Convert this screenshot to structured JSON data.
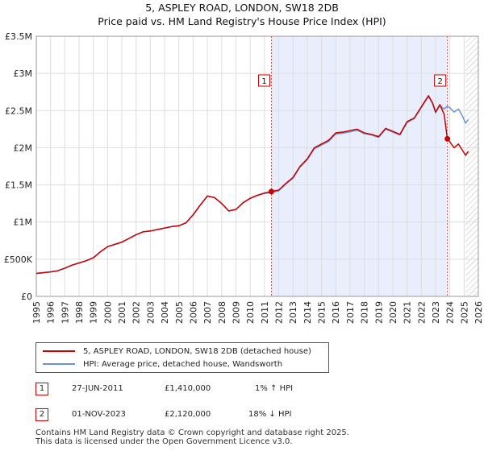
{
  "header": {
    "title": "5, ASPLEY ROAD, LONDON, SW18 2DB",
    "subtitle": "Price paid vs. HM Land Registry's House Price Index (HPI)"
  },
  "colors": {
    "price_line": "#cc0000",
    "hpi_line": "#6a94d4",
    "shade": "#e8eefb",
    "marker_line": "#e05050",
    "hatch": "#bbbbbb"
  },
  "chart_data": {
    "type": "line",
    "title": "5, ASPLEY ROAD, LONDON, SW18 2DB",
    "xlabel": "",
    "ylabel": "",
    "xlim": [
      1995,
      2026
    ],
    "ylim": [
      0,
      3500000
    ],
    "grid": true,
    "x_ticks": [
      1995,
      1996,
      1997,
      1998,
      1999,
      2000,
      2001,
      2002,
      2003,
      2004,
      2005,
      2006,
      2007,
      2008,
      2009,
      2010,
      2011,
      2012,
      2013,
      2014,
      2015,
      2016,
      2017,
      2018,
      2019,
      2020,
      2021,
      2022,
      2023,
      2024,
      2025,
      2026
    ],
    "y_ticks": [
      0,
      500000,
      1000000,
      1500000,
      2000000,
      2500000,
      3000000,
      3500000
    ],
    "y_tick_labels": [
      "£0",
      "£500K",
      "£1M",
      "£1.5M",
      "£2M",
      "£2.5M",
      "£3M",
      "£3.5M"
    ],
    "shaded_region": [
      2011.49,
      2023.83
    ],
    "hatch_from": 2025.1,
    "series": [
      {
        "name": "5, ASPLEY ROAD, LONDON, SW18 2DB (detached house)",
        "x": [
          1995.0,
          1995.5,
          1996.0,
          1996.5,
          1997.0,
          1997.5,
          1998.0,
          1998.5,
          1999.0,
          1999.5,
          2000.0,
          2000.5,
          2001.0,
          2001.5,
          2002.0,
          2002.5,
          2003.0,
          2003.5,
          2004.0,
          2004.5,
          2005.0,
          2005.5,
          2006.0,
          2006.5,
          2007.0,
          2007.5,
          2008.0,
          2008.5,
          2009.0,
          2009.5,
          2010.0,
          2010.5,
          2011.0,
          2011.49,
          2012.0,
          2012.5,
          2013.0,
          2013.5,
          2014.0,
          2014.5,
          2015.0,
          2015.5,
          2016.0,
          2016.5,
          2017.0,
          2017.5,
          2018.0,
          2018.5,
          2019.0,
          2019.5,
          2020.0,
          2020.5,
          2021.0,
          2021.5,
          2022.0,
          2022.5,
          2022.8,
          2023.0,
          2023.3,
          2023.6,
          2023.83,
          2024.0,
          2024.3,
          2024.6,
          2024.9,
          2025.1,
          2025.3
        ],
        "values": [
          310000,
          320000,
          330000,
          345000,
          380000,
          420000,
          450000,
          480000,
          520000,
          600000,
          670000,
          700000,
          730000,
          780000,
          830000,
          870000,
          880000,
          900000,
          920000,
          940000,
          950000,
          990000,
          1100000,
          1230000,
          1350000,
          1330000,
          1250000,
          1150000,
          1170000,
          1260000,
          1320000,
          1360000,
          1390000,
          1410000,
          1430000,
          1520000,
          1600000,
          1750000,
          1850000,
          2000000,
          2050000,
          2100000,
          2200000,
          2210000,
          2230000,
          2250000,
          2200000,
          2180000,
          2150000,
          2260000,
          2220000,
          2180000,
          2350000,
          2400000,
          2550000,
          2700000,
          2600000,
          2480000,
          2580000,
          2450000,
          2120000,
          2080000,
          2000000,
          2050000,
          1960000,
          1900000,
          1950000
        ]
      },
      {
        "name": "HPI: Average price, detached house, Wandsworth",
        "x": [
          1995.0,
          1995.5,
          1996.0,
          1996.5,
          1997.0,
          1997.5,
          1998.0,
          1998.5,
          1999.0,
          1999.5,
          2000.0,
          2000.5,
          2001.0,
          2001.5,
          2002.0,
          2002.5,
          2003.0,
          2003.5,
          2004.0,
          2004.5,
          2005.0,
          2005.5,
          2006.0,
          2006.5,
          2007.0,
          2007.5,
          2008.0,
          2008.5,
          2009.0,
          2009.5,
          2010.0,
          2010.5,
          2011.0,
          2011.49,
          2012.0,
          2012.5,
          2013.0,
          2013.5,
          2014.0,
          2014.5,
          2015.0,
          2015.5,
          2016.0,
          2016.5,
          2017.0,
          2017.5,
          2018.0,
          2018.5,
          2019.0,
          2019.5,
          2020.0,
          2020.5,
          2021.0,
          2021.5,
          2022.0,
          2022.5,
          2022.8,
          2023.0,
          2023.3,
          2023.6,
          2023.83,
          2024.0,
          2024.3,
          2024.6,
          2024.9,
          2025.1,
          2025.3
        ],
        "values": [
          305000,
          318000,
          328000,
          342000,
          378000,
          418000,
          448000,
          478000,
          518000,
          598000,
          668000,
          698000,
          728000,
          778000,
          828000,
          868000,
          878000,
          898000,
          918000,
          938000,
          948000,
          988000,
          1098000,
          1228000,
          1348000,
          1328000,
          1248000,
          1148000,
          1168000,
          1258000,
          1318000,
          1358000,
          1385000,
          1396000,
          1420000,
          1510000,
          1590000,
          1740000,
          1840000,
          1985000,
          2035000,
          2085000,
          2185000,
          2195000,
          2215000,
          2235000,
          2190000,
          2170000,
          2140000,
          2250000,
          2210000,
          2170000,
          2340000,
          2390000,
          2540000,
          2690000,
          2590000,
          2470000,
          2570000,
          2520000,
          2560000,
          2540000,
          2480000,
          2520000,
          2420000,
          2330000,
          2380000
        ]
      }
    ],
    "sales": [
      {
        "label": "1",
        "x": 2011.49,
        "value": 1410000
      },
      {
        "label": "2",
        "x": 2023.83,
        "value": 2120000
      }
    ]
  },
  "legend": {
    "items": [
      {
        "label": "5, ASPLEY ROAD, LONDON, SW18 2DB (detached house)"
      },
      {
        "label": "HPI: Average price, detached house, Wandsworth"
      }
    ]
  },
  "transactions": [
    {
      "num": "1",
      "date": "27-JUN-2011",
      "price": "£1,410,000",
      "hpi": "1% ↑ HPI"
    },
    {
      "num": "2",
      "date": "01-NOV-2023",
      "price": "£2,120,000",
      "hpi": "18% ↓ HPI"
    }
  ],
  "footer": {
    "line1": "Contains HM Land Registry data © Crown copyright and database right 2025.",
    "line2": "This data is licensed under the Open Government Licence v3.0."
  }
}
